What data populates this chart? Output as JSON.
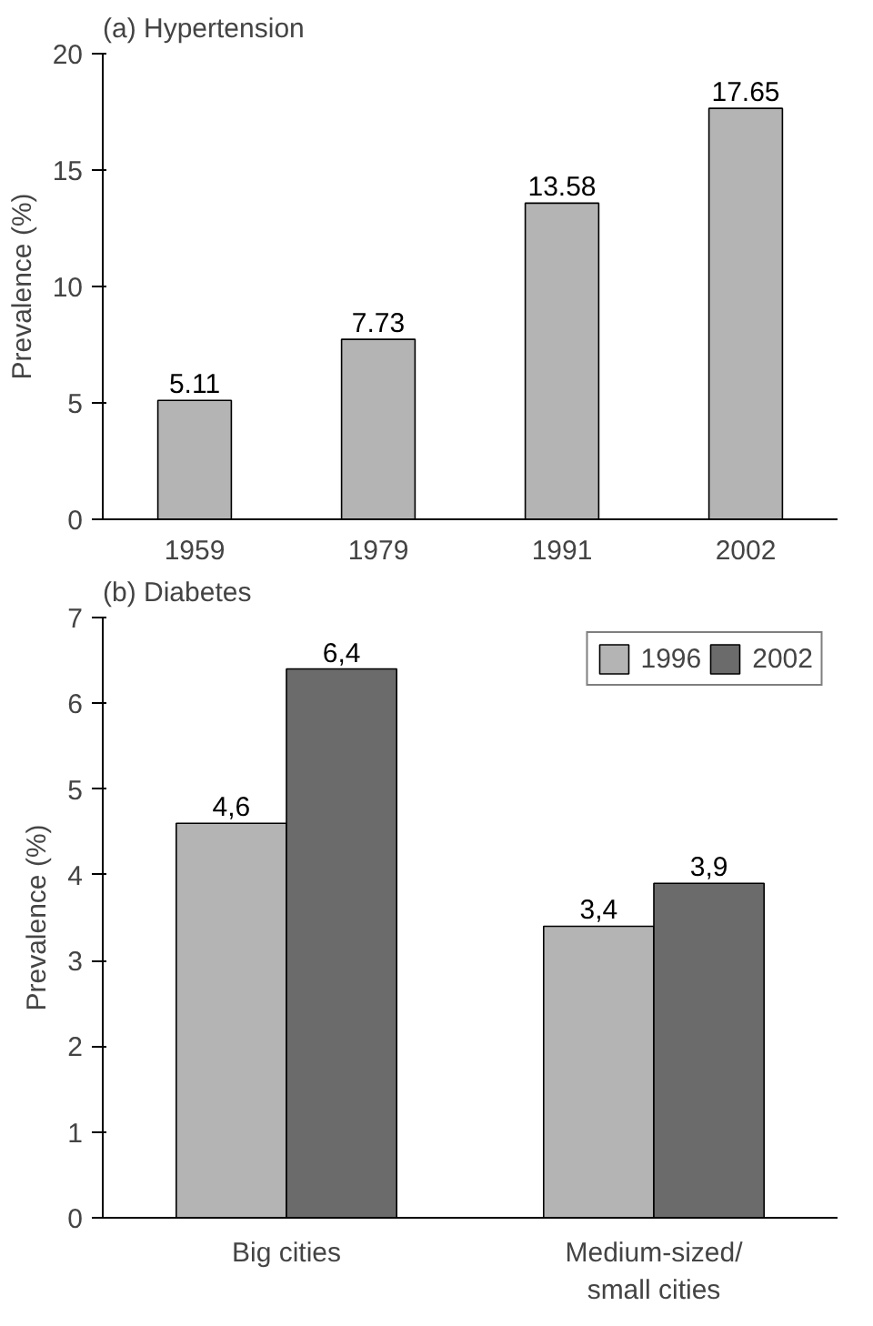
{
  "chart_data": [
    {
      "type": "bar",
      "title": "(a) Hypertension",
      "ylabel": "Prevalence (%)",
      "categories": [
        "1959",
        "1979",
        "1991",
        "2002"
      ],
      "values": [
        5.11,
        7.73,
        13.58,
        17.65
      ],
      "color": "#b4b4b4",
      "ylim": [
        0,
        20
      ],
      "yticks": [
        0,
        5,
        10,
        15,
        20
      ],
      "data_labels": true
    },
    {
      "type": "bar",
      "title": "(b) Diabetes",
      "ylabel": "Prevalence (%)",
      "categories": [
        "Big cities",
        "Medium-sized/\nsmall cities"
      ],
      "series": [
        {
          "name": "1996",
          "color": "#b4b4b4",
          "values": [
            4.6,
            3.4
          ],
          "value_labels": [
            "4,6",
            "3,4"
          ]
        },
        {
          "name": "2002",
          "color": "#6b6b6b",
          "values": [
            6.4,
            3.9
          ],
          "value_labels": [
            "6,4",
            "3,9"
          ]
        }
      ],
      "ylim": [
        0,
        7
      ],
      "yticks": [
        0,
        1,
        2,
        3,
        4,
        5,
        6,
        7
      ],
      "legend": "top right"
    }
  ]
}
